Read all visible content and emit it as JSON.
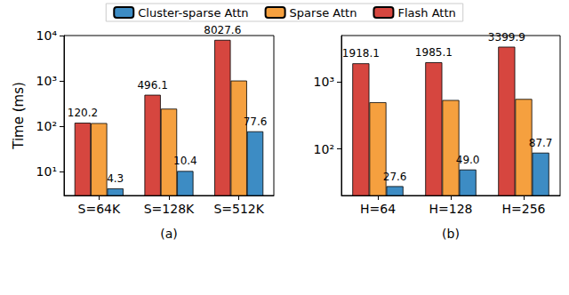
{
  "chart_data": [
    {
      "type": "bar",
      "log": "y",
      "legend": "top",
      "grid": false,
      "xlabel": "(a)",
      "ylabel": "Time (ms)",
      "categories": [
        "S=64K",
        "S=128K",
        "S=512K"
      ],
      "series": [
        {
          "name": "Flash Attn",
          "color": "#d6463f",
          "values": [
            120.2,
            496.1,
            8027.6
          ],
          "data_labels": true,
          "value_labels": [
            "120.2",
            "496.1",
            "8027.6"
          ]
        },
        {
          "name": "Sparse Attn",
          "color": "#f5a03f",
          "values": [
            118,
            245,
            1020
          ],
          "data_labels": false
        },
        {
          "name": "Cluster-sparse Attn",
          "color": "#3d8cc4",
          "values": [
            4.3,
            10.4,
            77.6
          ],
          "data_labels": true,
          "value_labels": [
            "4.3",
            "10.4",
            "77.6"
          ]
        }
      ],
      "ylim": [
        3,
        10000
      ],
      "yticks": [
        {
          "value": 10,
          "label": "10¹"
        },
        {
          "value": 100,
          "label": "10²"
        },
        {
          "value": 1000,
          "label": "10³"
        },
        {
          "value": 10000,
          "label": "10⁴"
        }
      ]
    },
    {
      "type": "bar",
      "log": "y",
      "grid": false,
      "xlabel": "(b)",
      "categories": [
        "H=64",
        "H=128",
        "H=256"
      ],
      "series": [
        {
          "name": "Flash Attn",
          "color": "#d6463f",
          "values": [
            1918.1,
            1985.1,
            3399.9
          ],
          "data_labels": true,
          "value_labels": [
            "1918.1",
            "1985.1",
            "3399.9"
          ]
        },
        {
          "name": "Sparse Attn",
          "color": "#f5a03f",
          "values": [
            500,
            540,
            560
          ],
          "data_labels": false
        },
        {
          "name": "Cluster-sparse Attn",
          "color": "#3d8cc4",
          "values": [
            27.6,
            49.0,
            87.7
          ],
          "data_labels": true,
          "value_labels": [
            "27.6",
            "49.0",
            "87.7"
          ]
        }
      ],
      "ylim": [
        20,
        5000
      ],
      "yticks": [
        {
          "value": 100,
          "label": "10²"
        },
        {
          "value": 1000,
          "label": "10³"
        }
      ]
    }
  ]
}
